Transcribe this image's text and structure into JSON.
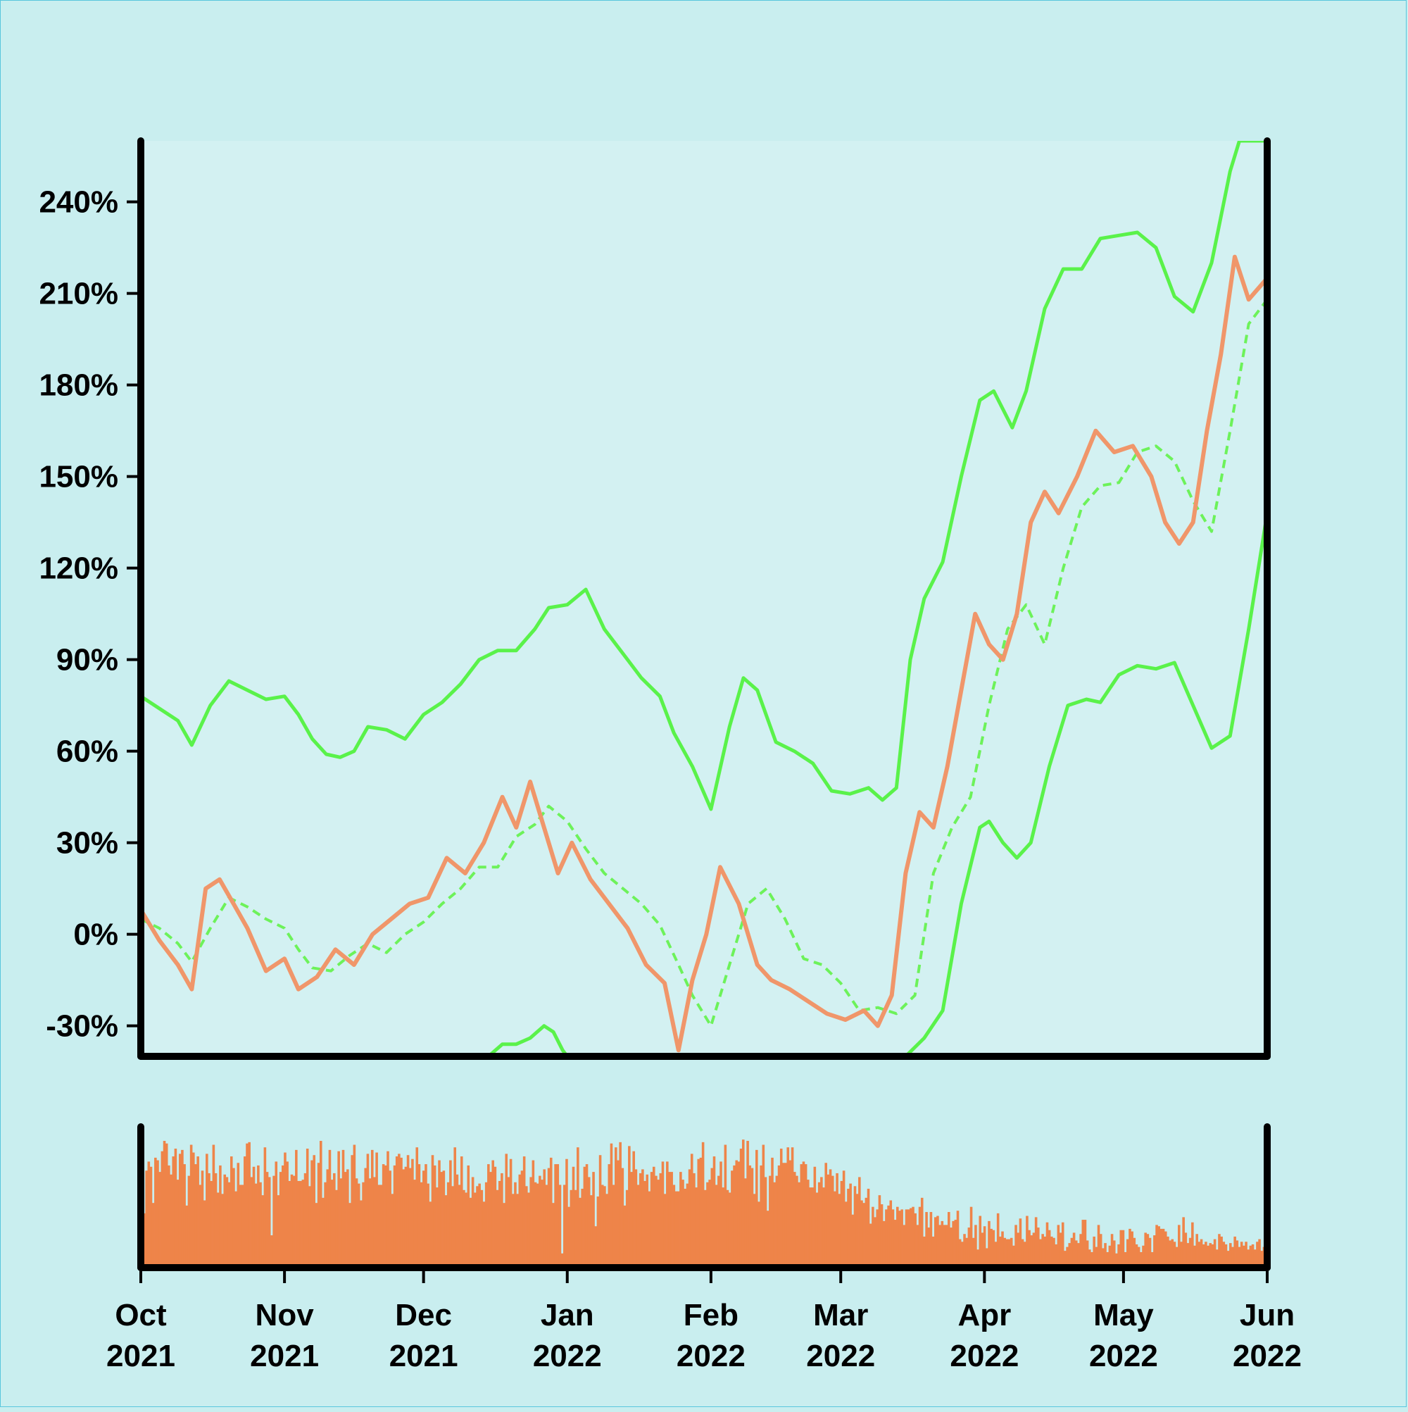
{
  "colors": {
    "background": "#c9eeef",
    "panel_background": "#d3f1f2",
    "price_line": "#f0966a",
    "band_line": "#5af24a",
    "moving_average": "#6df25a",
    "volume_bars": "#ee8449",
    "axis": "#000000"
  },
  "chart_data": [
    {
      "type": "line",
      "title": "",
      "xlabel": "",
      "ylabel": "",
      "ylim": [
        -40,
        260
      ],
      "yticks": [
        -30,
        0,
        30,
        60,
        90,
        120,
        150,
        180,
        210,
        240
      ],
      "ytick_labels": [
        "-30%",
        "0%",
        "30%",
        "60%",
        "90%",
        "120%",
        "150%",
        "180%",
        "210%",
        "240%"
      ],
      "xlim": [
        "2021-10-01",
        "2022-06-01"
      ],
      "xticks": [
        "2021-10-01",
        "2021-11-01",
        "2021-12-01",
        "2022-01-01",
        "2022-02-01",
        "2022-03-01",
        "2022-04-01",
        "2022-05-01",
        "2022-06-01"
      ],
      "xtick_labels": [
        [
          "Oct",
          "2021"
        ],
        [
          "Nov",
          "2021"
        ],
        [
          "Dec",
          "2021"
        ],
        [
          "Jan",
          "2022"
        ],
        [
          "Feb",
          "2022"
        ],
        [
          "Mar",
          "2022"
        ],
        [
          "Apr",
          "2022"
        ],
        [
          "May",
          "2022"
        ],
        [
          "Jun",
          "2022"
        ]
      ],
      "grid": false,
      "series": [
        {
          "role": "price",
          "style": "solid",
          "x": [
            "2021-10-01",
            "2021-10-05",
            "2021-10-09",
            "2021-10-12",
            "2021-10-15",
            "2021-10-18",
            "2021-10-21",
            "2021-10-24",
            "2021-10-28",
            "2021-11-01",
            "2021-11-04",
            "2021-11-08",
            "2021-11-12",
            "2021-11-16",
            "2021-11-20",
            "2021-11-24",
            "2021-11-28",
            "2021-12-02",
            "2021-12-06",
            "2021-12-10",
            "2021-12-14",
            "2021-12-18",
            "2021-12-21",
            "2021-12-24",
            "2021-12-27",
            "2021-12-30",
            "2022-01-02",
            "2022-01-06",
            "2022-01-10",
            "2022-01-14",
            "2022-01-18",
            "2022-01-22",
            "2022-01-25",
            "2022-01-28",
            "2022-01-31",
            "2022-02-03",
            "2022-02-07",
            "2022-02-11",
            "2022-02-14",
            "2022-02-18",
            "2022-02-22",
            "2022-02-26",
            "2022-03-02",
            "2022-03-06",
            "2022-03-09",
            "2022-03-12",
            "2022-03-15",
            "2022-03-18",
            "2022-03-21",
            "2022-03-24",
            "2022-03-27",
            "2022-03-30",
            "2022-04-02",
            "2022-04-05",
            "2022-04-08",
            "2022-04-11",
            "2022-04-14",
            "2022-04-17",
            "2022-04-21",
            "2022-04-25",
            "2022-04-29",
            "2022-05-03",
            "2022-05-07",
            "2022-05-10",
            "2022-05-13",
            "2022-05-16",
            "2022-05-19",
            "2022-05-22",
            "2022-05-25",
            "2022-05-28",
            "2022-06-01"
          ],
          "y": [
            8,
            -2,
            -10,
            -18,
            15,
            18,
            10,
            2,
            -12,
            -8,
            -18,
            -14,
            -5,
            -10,
            0,
            5,
            10,
            12,
            25,
            20,
            30,
            45,
            35,
            50,
            35,
            20,
            30,
            18,
            10,
            2,
            -10,
            -16,
            -38,
            -15,
            0,
            22,
            10,
            -10,
            -15,
            -18,
            -22,
            -26,
            -28,
            -25,
            -30,
            -20,
            20,
            40,
            35,
            55,
            80,
            105,
            95,
            90,
            105,
            135,
            145,
            138,
            150,
            165,
            158,
            160,
            150,
            135,
            128,
            135,
            165,
            190,
            222,
            208,
            215
          ]
        },
        {
          "role": "moving_average",
          "style": "dashed",
          "x": [
            "2021-10-01",
            "2021-10-05",
            "2021-10-09",
            "2021-10-12",
            "2021-10-16",
            "2021-10-20",
            "2021-10-24",
            "2021-10-28",
            "2021-11-01",
            "2021-11-04",
            "2021-11-07",
            "2021-11-11",
            "2021-11-15",
            "2021-11-19",
            "2021-11-23",
            "2021-11-27",
            "2021-12-01",
            "2021-12-05",
            "2021-12-09",
            "2021-12-13",
            "2021-12-17",
            "2021-12-21",
            "2021-12-25",
            "2021-12-28",
            "2022-01-01",
            "2022-01-05",
            "2022-01-09",
            "2022-01-13",
            "2022-01-17",
            "2022-01-21",
            "2022-01-25",
            "2022-01-28",
            "2022-02-01",
            "2022-02-05",
            "2022-02-09",
            "2022-02-13",
            "2022-02-17",
            "2022-02-21",
            "2022-02-25",
            "2022-03-01",
            "2022-03-05",
            "2022-03-09",
            "2022-03-13",
            "2022-03-17",
            "2022-03-21",
            "2022-03-25",
            "2022-03-29",
            "2022-04-02",
            "2022-04-06",
            "2022-04-10",
            "2022-04-14",
            "2022-04-18",
            "2022-04-22",
            "2022-04-26",
            "2022-04-30",
            "2022-05-04",
            "2022-05-08",
            "2022-05-12",
            "2022-05-16",
            "2022-05-20",
            "2022-05-24",
            "2022-05-28",
            "2022-06-01"
          ],
          "y": [
            5,
            2,
            -3,
            -9,
            2,
            12,
            9,
            5,
            2,
            -5,
            -11,
            -12,
            -7,
            -3,
            -6,
            0,
            4,
            10,
            15,
            22,
            22,
            32,
            36,
            42,
            37,
            28,
            20,
            15,
            10,
            3,
            -10,
            -20,
            -30,
            -10,
            10,
            15,
            5,
            -8,
            -10,
            -16,
            -25,
            -24,
            -26,
            -20,
            20,
            35,
            45,
            75,
            100,
            108,
            95,
            120,
            140,
            147,
            148,
            158,
            160,
            155,
            142,
            132,
            165,
            200,
            208
          ]
        },
        {
          "role": "upper_band",
          "style": "solid",
          "x": [
            "2021-10-01",
            "2021-10-05",
            "2021-10-09",
            "2021-10-12",
            "2021-10-16",
            "2021-10-20",
            "2021-10-24",
            "2021-10-28",
            "2021-11-01",
            "2021-11-04",
            "2021-11-07",
            "2021-11-10",
            "2021-11-13",
            "2021-11-16",
            "2021-11-19",
            "2021-11-23",
            "2021-11-27",
            "2021-12-01",
            "2021-12-05",
            "2021-12-09",
            "2021-12-13",
            "2021-12-17",
            "2021-12-21",
            "2021-12-25",
            "2021-12-28",
            "2022-01-01",
            "2022-01-05",
            "2022-01-09",
            "2022-01-13",
            "2022-01-17",
            "2022-01-21",
            "2022-01-24",
            "2022-01-28",
            "2022-02-01",
            "2022-02-05",
            "2022-02-08",
            "2022-02-11",
            "2022-02-15",
            "2022-02-19",
            "2022-02-23",
            "2022-02-27",
            "2022-03-03",
            "2022-03-07",
            "2022-03-10",
            "2022-03-13",
            "2022-03-16",
            "2022-03-19",
            "2022-03-23",
            "2022-03-27",
            "2022-03-31",
            "2022-04-03",
            "2022-04-07",
            "2022-04-10",
            "2022-04-14",
            "2022-04-18",
            "2022-04-22",
            "2022-04-26",
            "2022-04-30",
            "2022-05-04",
            "2022-05-08",
            "2022-05-12",
            "2022-05-16",
            "2022-05-20",
            "2022-05-24",
            "2022-05-26",
            "2022-05-29",
            "2022-06-01"
          ],
          "y": [
            78,
            74,
            70,
            62,
            75,
            83,
            80,
            77,
            78,
            72,
            64,
            59,
            58,
            60,
            68,
            67,
            64,
            72,
            76,
            82,
            90,
            93,
            93,
            100,
            107,
            108,
            113,
            100,
            92,
            84,
            78,
            66,
            55,
            41,
            68,
            84,
            80,
            63,
            60,
            56,
            47,
            46,
            48,
            44,
            48,
            90,
            110,
            122,
            150,
            175,
            178,
            166,
            178,
            205,
            218,
            218,
            228,
            229,
            230,
            225,
            209,
            204,
            220,
            250,
            260,
            260,
            260
          ]
        },
        {
          "role": "lower_band",
          "style": "solid",
          "x": [
            "2021-12-15",
            "2021-12-18",
            "2021-12-21",
            "2021-12-24",
            "2021-12-27",
            "2021-12-29",
            "2021-12-31",
            "2022-01-01",
            "2022-03-15",
            "2022-03-19",
            "2022-03-23",
            "2022-03-27",
            "2022-03-31",
            "2022-04-02",
            "2022-04-05",
            "2022-04-08",
            "2022-04-11",
            "2022-04-15",
            "2022-04-19",
            "2022-04-23",
            "2022-04-26",
            "2022-04-30",
            "2022-05-04",
            "2022-05-08",
            "2022-05-12",
            "2022-05-16",
            "2022-05-20",
            "2022-05-24",
            "2022-05-28",
            "2022-06-01"
          ],
          "y": [
            -40,
            -36,
            -36,
            -34,
            -30,
            -32,
            -38,
            -40,
            -40,
            -34,
            -25,
            10,
            35,
            37,
            30,
            25,
            30,
            55,
            75,
            77,
            76,
            85,
            88,
            87,
            89,
            75,
            61,
            65,
            100,
            138
          ]
        }
      ]
    },
    {
      "type": "bar",
      "role": "volume",
      "xlabel": "",
      "ylabel": "",
      "yticks": [],
      "x_start": "2021-10-01",
      "x_end": "2022-06-01",
      "values": [
        58,
        42,
        75,
        82,
        78,
        50,
        85,
        83,
        74,
        90,
        98,
        96,
        79,
        72,
        86,
        92,
        68,
        88,
        91,
        80,
        48,
        71,
        95,
        89,
        80,
        86,
        64,
        75,
        52,
        88,
        73,
        67,
        95,
        73,
        58,
        79,
        57,
        72,
        70,
        66,
        86,
        77,
        59,
        81,
        64,
        64,
        86,
        96,
        97,
        70,
        78,
        65,
        79,
        66,
        56,
        93,
        74,
        70,
        25,
        71,
        82,
        56,
        74,
        79,
        89,
        82,
        67,
        72,
        71,
        91,
        67,
        67,
        68,
        73,
        92,
        63,
        83,
        87,
        50,
        81,
        98,
        54,
        66,
        76,
        91,
        68,
        73,
        60,
        90,
        69,
        91,
        74,
        76,
        50,
        87,
        95,
        69,
        65,
        52,
        66,
        77,
        88,
        69,
        91,
        70,
        89,
        64,
        64,
        80,
        79,
        90,
        75,
        57,
        79,
        86,
        88,
        85,
        76,
        78,
        87,
        77,
        84,
        68,
        93,
        80,
        66,
        75,
        80,
        65,
        51,
        87,
        79,
        62,
        83,
        74,
        75,
        56,
        66,
        83,
        63,
        93,
        72,
        64,
        86,
        60,
        58,
        79,
        54,
        70,
        58,
        63,
        65,
        60,
        51,
        66,
        80,
        74,
        83,
        78,
        60,
        67,
        73,
        50,
        88,
        70,
        84,
        57,
        66,
        57,
        72,
        75,
        86,
        63,
        58,
        70,
        83,
        66,
        65,
        71,
        68,
        76,
        64,
        77,
        85,
        50,
        80,
        80,
        64,
        11,
        64,
        84,
        47,
        60,
        78,
        60,
        93,
        54,
        61,
        78,
        80,
        70,
        56,
        74,
        32,
        55,
        87,
        64,
        63,
        57,
        80,
        96,
        64,
        93,
        83,
        97,
        77,
        48,
        60,
        94,
        74,
        90,
        76,
        64,
        73,
        76,
        67,
        72,
        59,
        74,
        78,
        71,
        68,
        73,
        82,
        57,
        82,
        74,
        74,
        64,
        59,
        59,
        74,
        68,
        61,
        65,
        76,
        88,
        73,
        62,
        84,
        85,
        97,
        60,
        66,
        68,
        77,
        86,
        64,
        71,
        82,
        62,
        95,
        60,
        58,
        75,
        79,
        83,
        82,
        92,
        99,
        69,
        98,
        79,
        77,
        57,
        91,
        51,
        79,
        95,
        70,
        44,
        71,
        85,
        66,
        71,
        79,
        92,
        81,
        81,
        93,
        83,
        93,
        74,
        71,
        66,
        80,
        82,
        80,
        68,
        62,
        62,
        78,
        58,
        66,
        70,
        62,
        81,
        72,
        76,
        71,
        59,
        73,
        57,
        67,
        75,
        51,
        61,
        65,
        41,
        63,
        57,
        70,
        52,
        50,
        54,
        61,
        34,
        47,
        39,
        45,
        56,
        49,
        36,
        45,
        48,
        52,
        45,
        37,
        47,
        44,
        45,
        33,
        45,
        45,
        46,
        47,
        42,
        33,
        47,
        54,
        24,
        43,
        31,
        43,
        24,
        39,
        40,
        33,
        36,
        33,
        33,
        43,
        31,
        36,
        37,
        44,
        22,
        20,
        26,
        23,
        31,
        47,
        23,
        33,
        14,
        40,
        27,
        32,
        15,
        36,
        30,
        29,
        20,
        42,
        24,
        28,
        23,
        22,
        22,
        23,
        17,
        33,
        27,
        38,
        22,
        20,
        40,
        29,
        25,
        27,
        39,
        31,
        22,
        26,
        24,
        35,
        29,
        24,
        23,
        18,
        33,
        27,
        35,
        13,
        16,
        19,
        23,
        27,
        21,
        19,
        26,
        37,
        37,
        21,
        14,
        12,
        24,
        16,
        33,
        26,
        15,
        19,
        12,
        17,
        26,
        21,
        11,
        18,
        29,
        29,
        12,
        22,
        30,
        28,
        23,
        18,
        16,
        12,
        17,
        27,
        26,
        23,
        12,
        25,
        33,
        32,
        30,
        30,
        28,
        24,
        21,
        22,
        20,
        16,
        33,
        20,
        39,
        27,
        19,
        23,
        35,
        17,
        26,
        20,
        22,
        18,
        20,
        17,
        19,
        18,
        22,
        14,
        26,
        24,
        20,
        18,
        13,
        19,
        16,
        24,
        21,
        16,
        20,
        17,
        20,
        14,
        17,
        18,
        14,
        20,
        22,
        13,
        16,
        19
      ]
    }
  ]
}
